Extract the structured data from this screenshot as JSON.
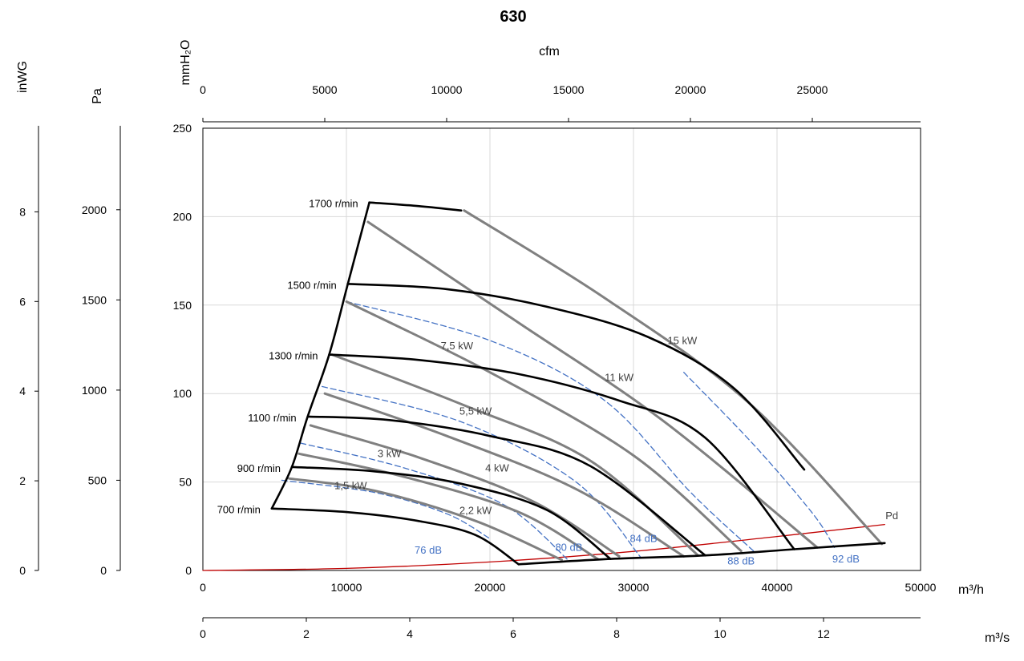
{
  "chart_data": {
    "type": "line",
    "title": "630",
    "x_primary": {
      "unit": "m³/h",
      "range": [
        0,
        50000
      ],
      "ticks": [
        "0",
        "10000",
        "20000",
        "30000",
        "40000",
        "50000"
      ]
    },
    "x_cfm": {
      "unit": "cfm",
      "ticks": [
        "0",
        "5000",
        "10000",
        "15000",
        "20000",
        "25000"
      ]
    },
    "x_m3s": {
      "unit": "m³/s",
      "ticks": [
        "0",
        "2",
        "4",
        "6",
        "8",
        "10",
        "12"
      ]
    },
    "y_primary": {
      "unit": "mmH₂O",
      "range": [
        0,
        250
      ],
      "ticks": [
        "0",
        "50",
        "100",
        "150",
        "200",
        "250"
      ]
    },
    "y_pa": {
      "unit": "Pa",
      "ticks": [
        "0",
        "500",
        "1000",
        "1500",
        "2000"
      ]
    },
    "y_inwg": {
      "unit": "inWG",
      "ticks": [
        "0",
        "2",
        "4",
        "6",
        "8"
      ]
    },
    "grid": true,
    "speed_curves": [
      {
        "label": "700 r/min",
        "points": [
          [
            4800,
            35
          ],
          [
            10000,
            33
          ],
          [
            15000,
            28
          ],
          [
            19000,
            20
          ],
          [
            22000,
            3.5
          ]
        ]
      },
      {
        "label": "900 r/min",
        "points": [
          [
            6200,
            58.5
          ],
          [
            12000,
            56
          ],
          [
            18000,
            49
          ],
          [
            24000,
            34
          ],
          [
            28400,
            6.5
          ]
        ]
      },
      {
        "label": "1100 r/min",
        "points": [
          [
            7300,
            87
          ],
          [
            13000,
            85
          ],
          [
            20000,
            76
          ],
          [
            27000,
            59
          ],
          [
            35000,
            8.5
          ]
        ]
      },
      {
        "label": "1300 r/min",
        "points": [
          [
            8800,
            122
          ],
          [
            15000,
            119
          ],
          [
            22000,
            111
          ],
          [
            29000,
            96
          ],
          [
            35000,
            75
          ],
          [
            41200,
            12
          ]
        ]
      },
      {
        "label": "1500 r/min",
        "points": [
          [
            10100,
            162
          ],
          [
            17000,
            159
          ],
          [
            24000,
            149
          ],
          [
            31000,
            132
          ],
          [
            37000,
            103
          ],
          [
            41900,
            57
          ]
        ]
      },
      {
        "label": "1700 r/min",
        "points": [
          [
            11600,
            208
          ],
          [
            15000,
            206
          ],
          [
            18000,
            203.5
          ]
        ]
      }
    ],
    "power_curves": [
      {
        "label": "1,5 kW",
        "points": [
          [
            6000,
            52
          ],
          [
            12000,
            45
          ],
          [
            19000,
            28
          ],
          [
            25000,
            6
          ]
        ]
      },
      {
        "label": "2,2 kW",
        "points": [
          [
            6700,
            66
          ],
          [
            14000,
            53
          ],
          [
            22000,
            33
          ],
          [
            27500,
            6.5
          ]
        ]
      },
      {
        "label": "3 kW",
        "points": [
          [
            7500,
            82
          ],
          [
            15000,
            64
          ],
          [
            23000,
            39
          ],
          [
            29000,
            8
          ]
        ]
      },
      {
        "label": "4 kW",
        "points": [
          [
            8500,
            100
          ],
          [
            17000,
            76
          ],
          [
            26000,
            46
          ],
          [
            33500,
            8
          ]
        ]
      },
      {
        "label": "5,5 kW",
        "points": [
          [
            9000,
            122
          ],
          [
            18000,
            94
          ],
          [
            27000,
            62
          ],
          [
            34500,
            8.5
          ]
        ]
      },
      {
        "label": "7,5 kW",
        "points": [
          [
            10000,
            152
          ],
          [
            20000,
            112
          ],
          [
            30000,
            65
          ],
          [
            37500,
            11
          ]
        ]
      },
      {
        "label": "11 kW",
        "points": [
          [
            11500,
            197
          ],
          [
            22000,
            140
          ],
          [
            32000,
            85
          ],
          [
            42800,
            13
          ]
        ]
      },
      {
        "label": "15 kW",
        "points": [
          [
            18200,
            203.5
          ],
          [
            28000,
            154
          ],
          [
            38000,
            95
          ],
          [
            47300,
            15
          ]
        ]
      }
    ],
    "noise_curves": [
      {
        "label": "76 dB",
        "points": [
          [
            5500,
            51
          ],
          [
            12000,
            44
          ],
          [
            17000,
            32
          ],
          [
            20000,
            18
          ]
        ]
      },
      {
        "label": "80 dB",
        "points": [
          [
            6800,
            72
          ],
          [
            14000,
            58
          ],
          [
            21000,
            37
          ],
          [
            25500,
            5.5
          ]
        ]
      },
      {
        "label": "84 dB",
        "points": [
          [
            8300,
            104
          ],
          [
            18000,
            84
          ],
          [
            26000,
            50
          ],
          [
            30500,
            7.5
          ]
        ]
      },
      {
        "label": "88 dB",
        "points": [
          [
            10000,
            152
          ],
          [
            20000,
            130
          ],
          [
            28000,
            96
          ],
          [
            34000,
            44
          ],
          [
            38500,
            10
          ]
        ]
      },
      {
        "label": "92 dB",
        "points": [
          [
            33500,
            112
          ],
          [
            38500,
            70
          ],
          [
            42500,
            32
          ],
          [
            44000,
            13
          ]
        ]
      }
    ],
    "system_curve": {
      "label": "Pd",
      "points": [
        [
          0,
          0
        ],
        [
          10000,
          1.2
        ],
        [
          20000,
          4.8
        ],
        [
          30000,
          10.8
        ],
        [
          40000,
          19.2
        ],
        [
          47500,
          26
        ]
      ]
    },
    "boundary_left": [
      [
        4800,
        35
      ],
      [
        6200,
        58.5
      ],
      [
        7300,
        87
      ],
      [
        8800,
        122
      ],
      [
        10100,
        162
      ],
      [
        11600,
        208
      ]
    ],
    "boundary_bottom": [
      [
        22000,
        3.5
      ],
      [
        28400,
        6.5
      ],
      [
        35000,
        8.5
      ],
      [
        41200,
        12
      ],
      [
        47500,
        15.5
      ]
    ],
    "colors": {
      "speed": "#000000",
      "power": "#808080",
      "noise": "#4472C4",
      "system": "#C00000",
      "grid": "#D9D9D9"
    }
  }
}
